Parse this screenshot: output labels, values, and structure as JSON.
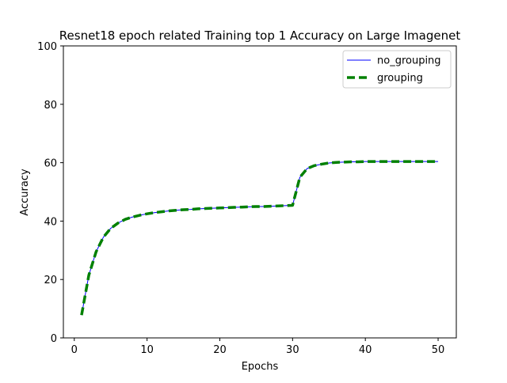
{
  "chart_data": {
    "type": "line",
    "title": "Resnet18 epoch related Training top 1 Accuracy on Large Imagenet",
    "xlabel": "Epochs",
    "ylabel": "Accuracy",
    "xlim": [
      -1.5,
      52.5
    ],
    "ylim": [
      0,
      100
    ],
    "xticks": [
      0,
      10,
      20,
      30,
      40,
      50
    ],
    "yticks": [
      0,
      20,
      40,
      60,
      80,
      100
    ],
    "grid": false,
    "legend_position": "top-right",
    "x": [
      1,
      2,
      3,
      4,
      5,
      6,
      7,
      8,
      9,
      10,
      11,
      12,
      13,
      14,
      15,
      16,
      17,
      18,
      19,
      20,
      21,
      22,
      23,
      24,
      25,
      26,
      27,
      28,
      29,
      30,
      31,
      32,
      33,
      34,
      35,
      36,
      37,
      38,
      39,
      40,
      41,
      42,
      43,
      44,
      45,
      46,
      47,
      48,
      49,
      50
    ],
    "series": [
      {
        "name": "no_grouping",
        "color": "#0000ff",
        "style": "solid",
        "values": [
          7.8,
          21.5,
          29.5,
          34.5,
          37.5,
          39.3,
          40.6,
          41.4,
          42.0,
          42.5,
          42.9,
          43.2,
          43.5,
          43.7,
          43.9,
          44.0,
          44.2,
          44.3,
          44.4,
          44.5,
          44.6,
          44.7,
          44.8,
          44.9,
          45.0,
          45.0,
          45.1,
          45.2,
          45.3,
          45.4,
          55.0,
          58.0,
          59.0,
          59.5,
          59.9,
          60.1,
          60.2,
          60.3,
          60.3,
          60.4,
          60.4,
          60.4,
          60.4,
          60.4,
          60.4,
          60.4,
          60.4,
          60.4,
          60.4,
          60.4
        ]
      },
      {
        "name": "grouping",
        "color": "#008000",
        "style": "dashed",
        "values": [
          7.8,
          21.5,
          29.5,
          34.5,
          37.5,
          39.3,
          40.6,
          41.4,
          42.0,
          42.5,
          42.9,
          43.2,
          43.5,
          43.7,
          43.9,
          44.0,
          44.2,
          44.3,
          44.4,
          44.5,
          44.6,
          44.7,
          44.8,
          44.9,
          45.0,
          45.0,
          45.1,
          45.2,
          45.3,
          45.4,
          55.0,
          58.0,
          59.0,
          59.5,
          59.9,
          60.1,
          60.2,
          60.3,
          60.3,
          60.4,
          60.4,
          60.4,
          60.4,
          60.4,
          60.4,
          60.4,
          60.4,
          60.4,
          60.4,
          60.4
        ]
      }
    ]
  }
}
